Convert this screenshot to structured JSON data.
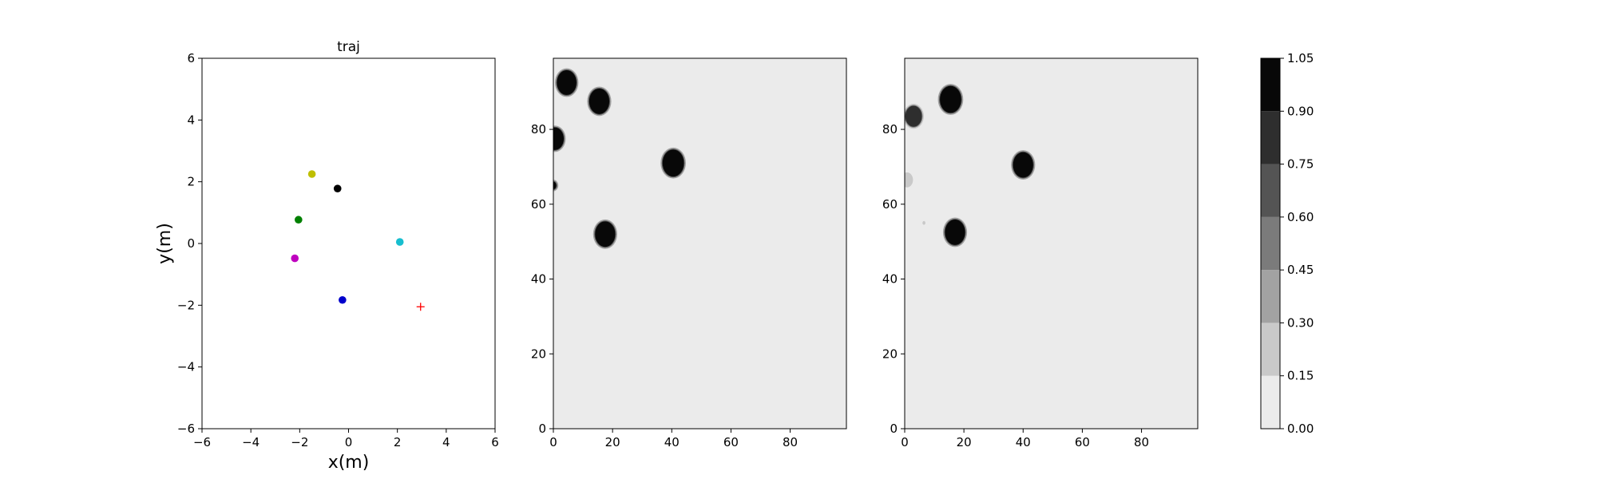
{
  "chart_data": [
    {
      "type": "scatter",
      "title": "traj",
      "xlabel": "x(m)",
      "ylabel": "y(m)",
      "xlim": [
        -6,
        6
      ],
      "ylim": [
        -6,
        6
      ],
      "xticks": [
        -6,
        -4,
        -2,
        0,
        2,
        4,
        6
      ],
      "yticks": [
        -6,
        -4,
        -2,
        0,
        2,
        4,
        6
      ],
      "grid": false,
      "series": [
        {
          "name": "agent-yellow",
          "color": "#bfbf00",
          "marker": "circle",
          "points": [
            [
              -1.5,
              2.25
            ]
          ]
        },
        {
          "name": "agent-black",
          "color": "#000000",
          "marker": "circle",
          "points": [
            [
              -0.45,
              1.78
            ]
          ]
        },
        {
          "name": "agent-green",
          "color": "#008000",
          "marker": "circle",
          "points": [
            [
              -2.05,
              0.77
            ]
          ]
        },
        {
          "name": "agent-cyan",
          "color": "#17becf",
          "marker": "circle",
          "points": [
            [
              2.1,
              0.05
            ]
          ]
        },
        {
          "name": "agent-magenta",
          "color": "#bf00bf",
          "marker": "circle",
          "points": [
            [
              -2.2,
              -0.48
            ]
          ]
        },
        {
          "name": "agent-blue",
          "color": "#0000cc",
          "marker": "circle",
          "points": [
            [
              -0.25,
              -1.83
            ]
          ]
        },
        {
          "name": "goal",
          "color": "#ff0000",
          "marker": "plus",
          "points": [
            [
              2.95,
              -2.05
            ]
          ]
        }
      ]
    },
    {
      "type": "heatmap",
      "title": "",
      "xlabel": "",
      "ylabel": "",
      "xlim": [
        0,
        99
      ],
      "ylim": [
        0,
        99
      ],
      "xticks": [
        0,
        20,
        40,
        60,
        80
      ],
      "yticks": [
        0,
        20,
        40,
        60,
        80
      ],
      "background_value": 0.05,
      "blobs": [
        {
          "cx": 4.5,
          "cy": 92.5,
          "r": 3.3,
          "value": 1.0
        },
        {
          "cx": 15.5,
          "cy": 87.5,
          "r": 3.4,
          "value": 1.0
        },
        {
          "cx": 0.5,
          "cy": 77.5,
          "r": 3.0,
          "value": 1.0
        },
        {
          "cx": 0.0,
          "cy": 65.0,
          "r": 1.0,
          "value": 0.95
        },
        {
          "cx": 40.5,
          "cy": 71.0,
          "r": 3.6,
          "value": 1.0
        },
        {
          "cx": 17.5,
          "cy": 52.0,
          "r": 3.4,
          "value": 1.0
        }
      ]
    },
    {
      "type": "heatmap",
      "title": "",
      "xlabel": "",
      "ylabel": "",
      "xlim": [
        0,
        99
      ],
      "ylim": [
        0,
        99
      ],
      "xticks": [
        0,
        20,
        40,
        60,
        80
      ],
      "yticks": [
        0,
        20,
        40,
        60,
        80
      ],
      "background_value": 0.05,
      "blobs": [
        {
          "cx": 3.0,
          "cy": 83.5,
          "r": 2.8,
          "value": 0.85
        },
        {
          "cx": 15.5,
          "cy": 88.0,
          "r": 3.6,
          "value": 1.0
        },
        {
          "cx": 40.0,
          "cy": 70.5,
          "r": 3.4,
          "value": 1.0
        },
        {
          "cx": 17.0,
          "cy": 52.5,
          "r": 3.4,
          "value": 1.0
        },
        {
          "cx": 0.8,
          "cy": 66.5,
          "r": 2.0,
          "value": 0.22
        },
        {
          "cx": 6.5,
          "cy": 55.0,
          "r": 0.5,
          "value": 0.3
        }
      ]
    },
    {
      "type": "colorbar",
      "levels": [
        0.0,
        0.15,
        0.3,
        0.45,
        0.6,
        0.75,
        0.9,
        1.05
      ],
      "tick_labels": [
        "0.00",
        "0.15",
        "0.30",
        "0.45",
        "0.60",
        "0.75",
        "0.90",
        "1.05"
      ],
      "colors": [
        "#ebebeb",
        "#c9c9c9",
        "#a2a2a2",
        "#7b7b7b",
        "#545454",
        "#2e2e2e",
        "#080808"
      ]
    }
  ]
}
